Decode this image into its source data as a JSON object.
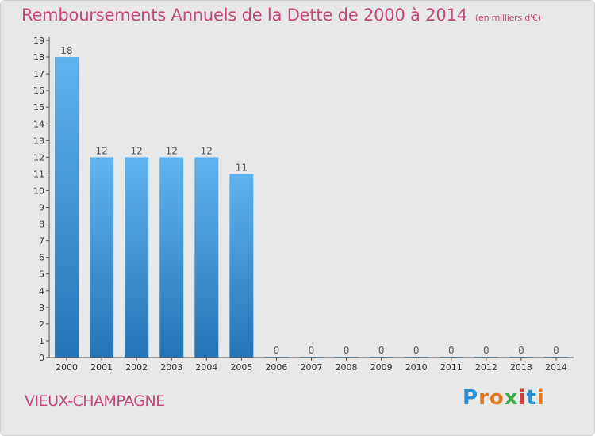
{
  "header": {
    "title": "Remboursements Annuels de la Dette de 2000 à 2014",
    "unit": "(en milliers d'€)"
  },
  "footer": {
    "town": "VIEUX-CHAMPAGNE",
    "brand_letters": [
      "P",
      "r",
      "o",
      "x",
      "i",
      "t",
      "i"
    ],
    "brand_colors": [
      "#2a8fd6",
      "#e07a1f",
      "#e07a1f",
      "#3aa845",
      "#d93a3a",
      "#2a8fd6",
      "#e07a1f"
    ]
  },
  "chart_data": {
    "type": "bar",
    "categories": [
      "2000",
      "2001",
      "2002",
      "2003",
      "2004",
      "2005",
      "2006",
      "2007",
      "2008",
      "2009",
      "2010",
      "2011",
      "2012",
      "2013",
      "2014"
    ],
    "values": [
      18,
      12,
      12,
      12,
      12,
      11,
      0,
      0,
      0,
      0,
      0,
      0,
      0,
      0,
      0
    ],
    "value_labels": [
      "18",
      "12",
      "12",
      "12",
      "12",
      "11",
      "0",
      "0",
      "0",
      "0",
      "0",
      "0",
      "0",
      "0",
      "0"
    ],
    "ylim": [
      0,
      19
    ],
    "yticks": [
      "0",
      "1",
      "2",
      "3",
      "4",
      "5",
      "6",
      "7",
      "8",
      "9",
      "10",
      "11",
      "12",
      "13",
      "14",
      "15",
      "16",
      "17",
      "18",
      "19"
    ],
    "title": "Remboursements Annuels de la Dette de 2000 à 2014",
    "xlabel": "",
    "ylabel": "",
    "grid": false,
    "bar_color_top": "#5fb3ee",
    "bar_color_bottom": "#2574b8"
  }
}
